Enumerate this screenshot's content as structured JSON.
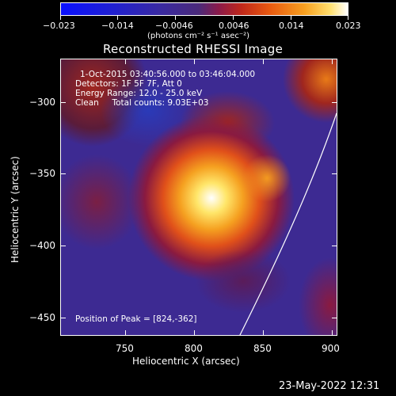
{
  "colorbar": {
    "tick_labels": [
      "−0.023",
      "−0.014",
      "−0.0046",
      "0.0046",
      "0.014",
      "0.023"
    ],
    "units": "(photons cm⁻² s⁻¹ asec⁻²)"
  },
  "plot": {
    "title": "Reconstructed RHESSI Image",
    "info_lines": [
      "1-Oct-2015 03:40:56.000 to 03:46:04.000",
      "Detectors: 1F 5F 7F, Att 0",
      "Energy Range: 12.0 - 25.0 keV",
      "Clean     Total counts: 9.03E+03"
    ],
    "peak_text": "Position of Peak = [824,-362]",
    "xlabel": "Heliocentric X (arcsec)",
    "ylabel": "Heliocentric Y (arcsec)",
    "x_ticks": [
      "750",
      "800",
      "850",
      "900"
    ],
    "y_ticks": [
      "−300",
      "−350",
      "−400",
      "−450"
    ],
    "xlim": [
      717,
      908
    ],
    "ylim": [
      -463,
      -272
    ]
  },
  "footer": {
    "timestamp": "23-May-2022 12:31"
  }
}
